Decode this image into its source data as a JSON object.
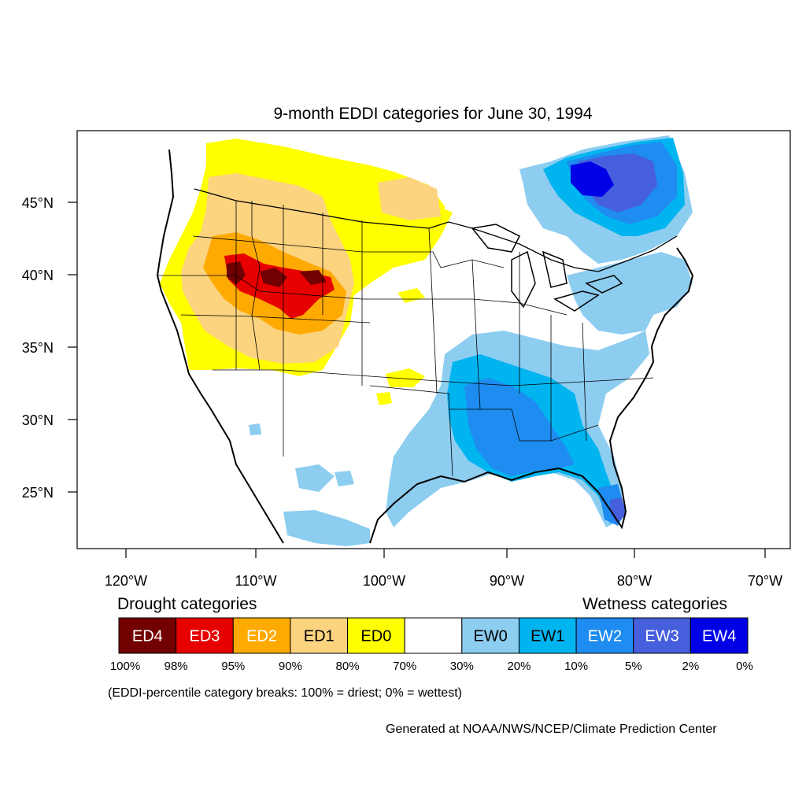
{
  "title": "9-month EDDI categories for June 30, 1994",
  "axes": {
    "lat_labels": [
      "45°N",
      "40°N",
      "35°N",
      "30°N",
      "25°N"
    ],
    "lon_labels": [
      "120°W",
      "110°W",
      "100°W",
      "90°W",
      "80°W",
      "70°W"
    ]
  },
  "legend": {
    "drought_header": "Drought categories",
    "wetness_header": "Wetness categories",
    "categories": [
      {
        "label": "ED4",
        "color": "#730000",
        "text_color": "#ffffff"
      },
      {
        "label": "ED3",
        "color": "#e60000",
        "text_color": "#ffffff"
      },
      {
        "label": "ED2",
        "color": "#ffaa00",
        "text_color": "#ffffff"
      },
      {
        "label": "ED1",
        "color": "#fcd37f",
        "text_color": "#000000"
      },
      {
        "label": "ED0",
        "color": "#ffff00",
        "text_color": "#000000"
      },
      {
        "label": "",
        "color": "#ffffff",
        "text_color": "#000000"
      },
      {
        "label": "EW0",
        "color": "#8ccdf0",
        "text_color": "#000000"
      },
      {
        "label": "EW1",
        "color": "#00b4f0",
        "text_color": "#000000"
      },
      {
        "label": "EW2",
        "color": "#1e8cf0",
        "text_color": "#ffffff"
      },
      {
        "label": "EW3",
        "color": "#465fdc",
        "text_color": "#ffffff"
      },
      {
        "label": "EW4",
        "color": "#0000e6",
        "text_color": "#ffffff"
      }
    ],
    "breaks": [
      "100%",
      "98%",
      "95%",
      "90%",
      "80%",
      "70%",
      "30%",
      "20%",
      "10%",
      "5%",
      "2%",
      "0%"
    ],
    "note": "(EDDI-percentile category breaks: 100% = driest; 0% = wettest)"
  },
  "footer": "Generated at NOAA/NWS/NCEP/Climate Prediction Center"
}
